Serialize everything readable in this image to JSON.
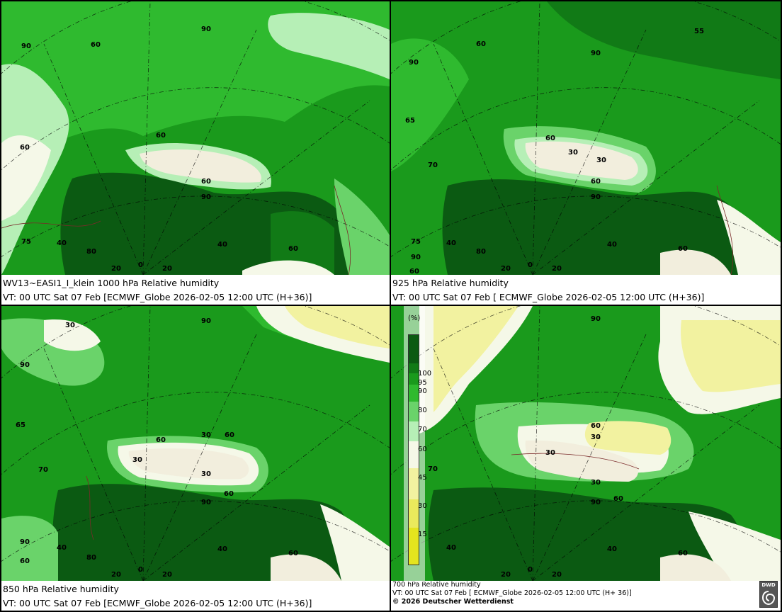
{
  "panels": [
    {
      "id": "p1000",
      "title": "WV13~EASI1_I_klein 1000 hPa Relative humidity",
      "valid": "VT: 00 UTC Sat  07 Feb [ECMWF_Globe 2026-02-05 12:00 UTC  (H+36)]",
      "contour_labels": [
        "90",
        "60",
        "60",
        "60",
        "60",
        "90",
        "75",
        "40",
        "80",
        "20",
        "0",
        "20",
        "40",
        "60",
        "90"
      ]
    },
    {
      "id": "p925",
      "title": "925 hPa Relative humidity",
      "valid": "VT: 00 UTC Sat  07 Feb [ ECMWF_Globe 2026-02-05 12:00 UTC  (H+36)]",
      "contour_labels": [
        "55",
        "60",
        "90",
        "90",
        "65",
        "70",
        "60",
        "30",
        "30",
        "60",
        "90",
        "75",
        "40",
        "80",
        "90",
        "60",
        "20",
        "0",
        "20",
        "40",
        "60"
      ]
    },
    {
      "id": "p850",
      "title": "850 hPa  Relative humidity",
      "valid": "VT: 00 UTC Sat  07 Feb [ECMWF_Globe 2026-02-05 12:00 UTC  (H+36)]",
      "contour_labels": [
        "30",
        "90",
        "90",
        "65",
        "70",
        "30",
        "60",
        "60",
        "30",
        "30",
        "60",
        "90",
        "90",
        "40",
        "60",
        "80",
        "20",
        "0",
        "20",
        "40",
        "60"
      ]
    },
    {
      "id": "p700",
      "title": "700 hPa Relative humidity",
      "valid": "VT: 00 UTC Sat  07 Feb [ ECMWF_Globe 2026-02-05 12:00 UTC  (H+ 36)]",
      "copyright": "© 2026 Deutscher Wetterdienst",
      "contour_labels": [
        "90",
        "70",
        "60",
        "30",
        "30",
        "30",
        "60",
        "90",
        "40",
        "20",
        "0",
        "20",
        "40",
        "60"
      ]
    }
  ],
  "legend": {
    "unit": "(%)",
    "ticks": [
      "100",
      "95",
      "90",
      "80",
      "70",
      "60",
      "45",
      "30",
      "15"
    ],
    "colors": [
      "#0b5a12",
      "#117a16",
      "#1a9a1c",
      "#2fba2f",
      "#6ad36a",
      "#b6efb6",
      "#f5f8e8",
      "#f2f2a0",
      "#eaea5c",
      "#e4e41e"
    ]
  },
  "logo": {
    "text": "DWD"
  }
}
